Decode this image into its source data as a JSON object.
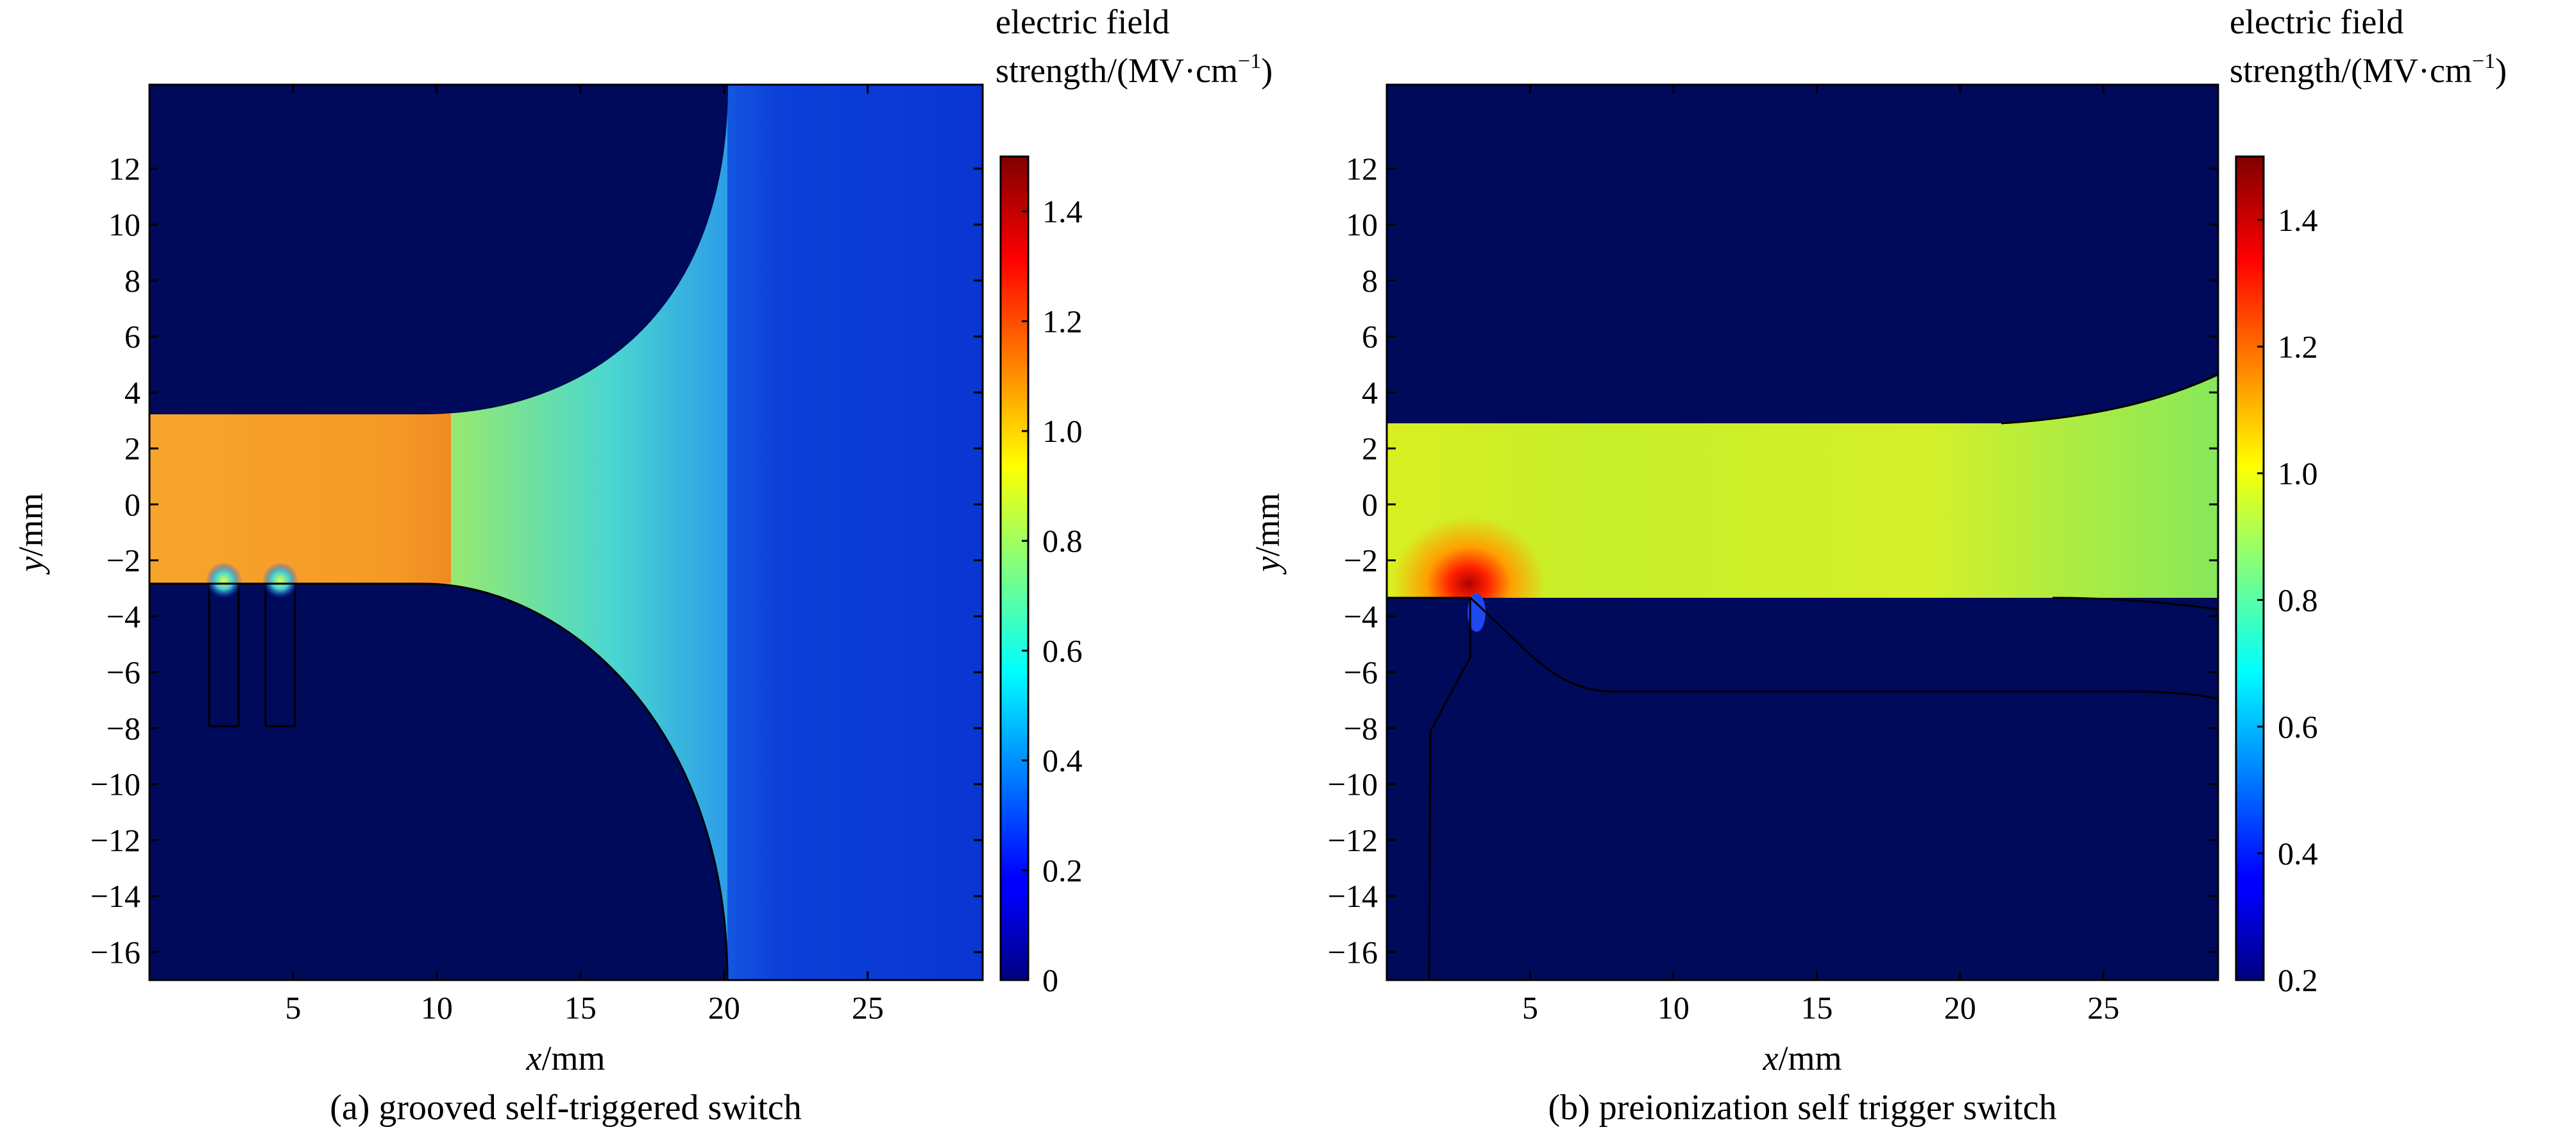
{
  "figure": {
    "panel_a_caption": "(a) grooved self-triggered switch",
    "panel_b_caption": "(b) preionization self trigger switch"
  },
  "chart_data": [
    {
      "type": "heatmap",
      "title": "",
      "xlabel_var": "x",
      "xlabel_unit": "/mm",
      "ylabel_var": "y",
      "ylabel_unit": "/mm",
      "xlim": [
        0,
        29
      ],
      "ylim": [
        -17,
        15
      ],
      "xticks": [
        5,
        10,
        15,
        20,
        25
      ],
      "yticks": [
        12,
        10,
        8,
        6,
        4,
        2,
        0,
        -2,
        -4,
        -6,
        -8,
        -10,
        -12,
        -14,
        -16
      ],
      "colorbar": {
        "title_line1": "electric field",
        "title_line2_prefix": "strength/(MV·cm",
        "title_line2_sup": "−1",
        "title_line2_suffix": ")",
        "range": [
          0,
          1.5
        ],
        "ticks": [
          0,
          0.2,
          0.4,
          0.6,
          0.8,
          1.0,
          1.2,
          1.4
        ],
        "colormap": "jet"
      },
      "regions": [
        {
          "name": "channel",
          "x": [
            0,
            10
          ],
          "y": [
            -3,
            3
          ],
          "field_MV_per_cm": 1.05
        },
        {
          "name": "flared gap",
          "x": [
            10,
            20
          ],
          "field_MV_per_cm": [
            1.05,
            0.5
          ]
        },
        {
          "name": "right electrode region",
          "x": [
            20,
            29
          ],
          "field_MV_per_cm": 0.15
        },
        {
          "name": "grooves",
          "x_centers": [
            2.5,
            4.5
          ],
          "y": [
            -8,
            -3
          ],
          "field_MV_per_cm": 0
        }
      ]
    },
    {
      "type": "heatmap",
      "title": "",
      "xlabel_var": "x",
      "xlabel_unit": "/mm",
      "ylabel_var": "y",
      "ylabel_unit": "/mm",
      "xlim": [
        0,
        29
      ],
      "ylim": [
        -17,
        15
      ],
      "xticks": [
        5,
        10,
        15,
        20,
        25
      ],
      "yticks": [
        12,
        10,
        8,
        6,
        4,
        2,
        0,
        -2,
        -4,
        -6,
        -8,
        -10,
        -12,
        -14,
        -16
      ],
      "colorbar": {
        "title_line1": "electric field",
        "title_line2_prefix": "strength/(MV·cm",
        "title_line2_sup": "−1",
        "title_line2_suffix": ")",
        "range": [
          0.2,
          1.5
        ],
        "ticks": [
          0.2,
          0.4,
          0.6,
          0.8,
          1.0,
          1.2,
          1.4
        ],
        "colormap": "jet"
      },
      "regions": [
        {
          "name": "channel",
          "x": [
            0,
            29
          ],
          "y": [
            -3.5,
            2.6
          ],
          "field_MV_per_cm": 0.95
        },
        {
          "name": "trigger tip",
          "x": 3,
          "y": -3.5,
          "field_MV_per_cm": 1.5
        },
        {
          "name": "right flare",
          "x": [
            21,
            29
          ],
          "y": [
            -4,
            4.3
          ],
          "field_MV_per_cm": 0.85
        }
      ]
    }
  ],
  "colors": {
    "background_field": "#000a5a",
    "right_electrode": "#0a3ad6",
    "channel_a": "#f7a22c",
    "channel_b": "#c8ee2a"
  }
}
